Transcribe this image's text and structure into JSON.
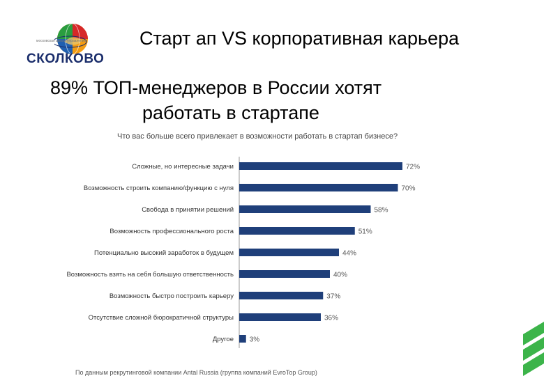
{
  "logo": {
    "text": "СКОЛКОВО",
    "tagline": "московская школа управления"
  },
  "title": "Старт ап VS корпоративная карьера",
  "subtitle": {
    "line1": "89% ТОП-менеджеров в России хотят",
    "line2": "работать в стартапе"
  },
  "chart_data": {
    "type": "bar",
    "orientation": "horizontal",
    "title": "Что вас больше всего привлекает в возможности работать в стартап бизнесе?",
    "categories": [
      "Сложные, но интересные задачи",
      "Возможность строить компанию/функцию с нуля",
      "Свобода в принятии решений",
      "Возможность профессионального роста",
      "Потенциально высокий заработок в будущем",
      "Возможность взять на себя большую ответственность",
      "Возможность быстро построить карьеру",
      "Отсутствие сложной бюрократичной структуры",
      "Другое"
    ],
    "values": [
      72,
      70,
      58,
      51,
      44,
      40,
      37,
      36,
      3
    ],
    "value_labels": [
      "72%",
      "70%",
      "58%",
      "51%",
      "44%",
      "40%",
      "37%",
      "36%",
      "3%"
    ],
    "xlim": [
      0,
      100
    ],
    "grid": false,
    "bar_color": "#1f3f7a"
  },
  "footer": "По данным рекрутинговой компании Antal Russia (группа компаний EvroTop Group)"
}
